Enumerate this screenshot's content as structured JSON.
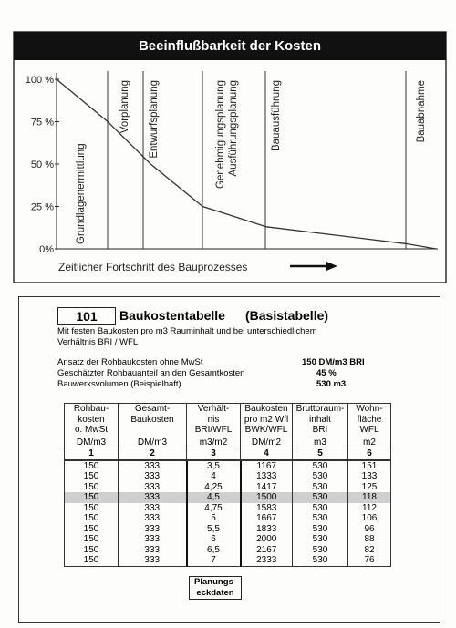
{
  "chart_data": {
    "type": "line",
    "title": "Beeinflußbarkeit der Kosten",
    "x_label": "Zeitlicher Fortschritt des Bauprozesses",
    "x": [
      0,
      13.5,
      24.8,
      38.5,
      55.3,
      92.1,
      100
    ],
    "values": [
      100,
      75,
      50,
      25,
      13,
      3,
      0
    ],
    "xlim": [
      0,
      100
    ],
    "ylim": [
      0,
      100
    ],
    "yticks": [
      {
        "value": 0,
        "label": "0%"
      },
      {
        "value": 25,
        "label": "25 %"
      },
      {
        "value": 50,
        "label": "50 %"
      },
      {
        "value": 75,
        "label": "75 %"
      },
      {
        "value": 100,
        "label": "100 %"
      }
    ],
    "color": "#333333",
    "phases": [
      {
        "lines": [
          "Grundlagenermittlung"
        ]
      },
      {
        "lines": [
          "Vorplanung"
        ]
      },
      {
        "lines": [
          "Entwurfsplanung"
        ]
      },
      {
        "lines": [
          "Genehmigungsplanung",
          "Ausführungsplanung"
        ]
      },
      {
        "lines": [
          "Bauausführung"
        ]
      },
      {
        "lines": [
          "Bauabnahme"
        ]
      }
    ]
  },
  "table_card": {
    "number": "101",
    "title": "Baukostentabelle",
    "title_suffix": "(Basistabelle)",
    "subtitle": [
      "Mit festen Baukosten pro m3 Rauminhalt und bei unterschiedlichem",
      "Verhältnis BRI / WFL"
    ],
    "params": [
      [
        "Ansatz der Rohbaukosten ohne MwSt",
        "150 DM/m3 BRI"
      ],
      [
        "Geschätzter Rohbauanteil an den Gesamtkosten",
        "45 %"
      ],
      [
        "Bauwerksvolumen (Beispielhaft)",
        "530 m3"
      ]
    ],
    "table": {
      "columns": [
        {
          "lines": [
            "Rohbau-",
            "kosten",
            "o. MwSt"
          ],
          "unit": "DM/m3"
        },
        {
          "lines": [
            "Gesamt-",
            "Baukosten"
          ],
          "unit": "DM/m3"
        },
        {
          "lines": [
            "Verhält-",
            "nis",
            "BRI/WFL"
          ],
          "unit": "m3/m2"
        },
        {
          "lines": [
            "Baukosten",
            "pro m2 Wfl",
            "BWK/WFL"
          ],
          "unit": "DM/m2"
        },
        {
          "lines": [
            "Bruttoraum-",
            "inhalt",
            "BRI"
          ],
          "unit": "m3"
        },
        {
          "lines": [
            "Wohn-",
            "fläche",
            "WFL"
          ],
          "unit": "m2"
        }
      ],
      "column_numbers": [
        "1",
        "2",
        "3",
        "4",
        "5",
        "6"
      ],
      "rows": [
        [
          "150",
          "333",
          "3,5",
          "1167",
          "530",
          "151"
        ],
        [
          "150",
          "333",
          "4",
          "1333",
          "530",
          "133"
        ],
        [
          "150",
          "333",
          "4,25",
          "1417",
          "530",
          "125"
        ],
        [
          "150",
          "333",
          "4,5",
          "1500",
          "530",
          "118"
        ],
        [
          "150",
          "333",
          "4,75",
          "1583",
          "530",
          "112"
        ],
        [
          "150",
          "333",
          "5",
          "1667",
          "530",
          "106"
        ],
        [
          "150",
          "333",
          "5,5",
          "1833",
          "530",
          "96"
        ],
        [
          "150",
          "333",
          "6",
          "2000",
          "530",
          "88"
        ],
        [
          "150",
          "333",
          "6,5",
          "2167",
          "530",
          "82"
        ],
        [
          "150",
          "333",
          "7",
          "2333",
          "530",
          "76"
        ]
      ],
      "highlight_row": 3,
      "footer_note": [
        "Planungs-",
        "eckdaten"
      ]
    }
  }
}
